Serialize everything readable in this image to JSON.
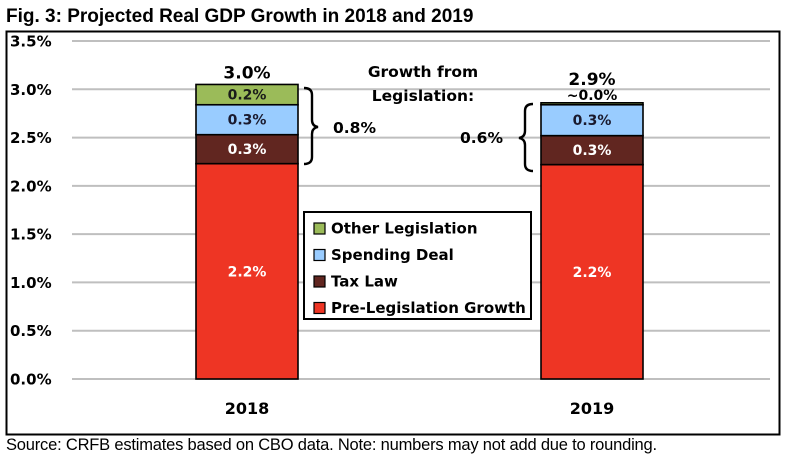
{
  "chart_data": {
    "type": "bar",
    "stacked": true,
    "title": "Fig. 3: Projected Real GDP Growth in 2018 and 2019",
    "source_note": "Source: CRFB estimates based on CBO data. Note: numbers may not add due to rounding.",
    "xlabel": "",
    "ylabel": "",
    "ylim": [
      0,
      3.5
    ],
    "yticks": [
      0.0,
      0.5,
      1.0,
      1.5,
      2.0,
      2.5,
      3.0,
      3.5
    ],
    "ytick_labels": [
      "0.0%",
      "0.5%",
      "1.0%",
      "1.5%",
      "2.0%",
      "2.5%",
      "3.0%",
      "3.5%"
    ],
    "grid": true,
    "categories": [
      "2018",
      "2019"
    ],
    "series": [
      {
        "name": "Pre-Legislation Growth",
        "color": "#ee3524",
        "label_color": "#ffffff",
        "values": [
          2.23,
          2.22
        ],
        "labels": [
          "2.2%",
          "2.2%"
        ]
      },
      {
        "name": "Tax Law",
        "color": "#612620",
        "label_color": "#ffffff",
        "values": [
          0.3,
          0.3
        ],
        "labels": [
          "0.3%",
          "0.3%"
        ]
      },
      {
        "name": "Spending Deal",
        "color": "#99ccff",
        "label_color": "#1a1a2e",
        "values": [
          0.31,
          0.32
        ],
        "labels": [
          "0.3%",
          "0.3%"
        ]
      },
      {
        "name": "Other Legislation",
        "color": "#9bbb59",
        "label_color": "#1a1a1a",
        "values": [
          0.21,
          0.02
        ],
        "labels": [
          "0.2%",
          "~0.0%"
        ]
      }
    ],
    "totals": [
      "3.0%",
      "2.9%"
    ],
    "annotations": {
      "header": [
        "Growth from",
        "Legislation:"
      ],
      "legislation_growth": [
        "0.8%",
        "0.6%"
      ]
    },
    "legend": {
      "placement": "center",
      "order": [
        "Other Legislation",
        "Spending Deal",
        "Tax Law",
        "Pre-Legislation Growth"
      ]
    }
  }
}
